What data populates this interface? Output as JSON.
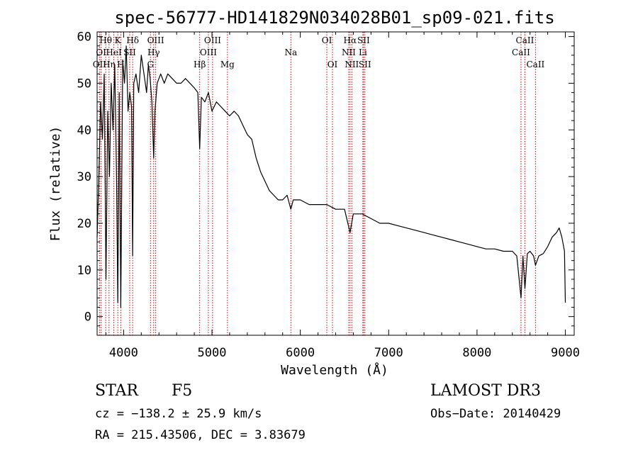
{
  "chart_data": {
    "type": "line",
    "title": "spec-56777-HD141829N034028B01_sp09-021.fits",
    "xlabel": "Wavelength (Å)",
    "ylabel": "Flux (relative)",
    "xlim": [
      3700,
      9100
    ],
    "ylim": [
      -4,
      61
    ],
    "xticks": [
      4000,
      5000,
      6000,
      7000,
      8000,
      9000
    ],
    "yticks": [
      0,
      10,
      20,
      30,
      40,
      50,
      60
    ],
    "series": [
      {
        "name": "spectrum",
        "x": [
          3700,
          3720,
          3740,
          3760,
          3780,
          3800,
          3820,
          3840,
          3860,
          3880,
          3900,
          3920,
          3934,
          3950,
          3968,
          3990,
          4010,
          4030,
          4050,
          4070,
          4090,
          4102,
          4115,
          4140,
          4170,
          4200,
          4230,
          4260,
          4280,
          4300,
          4320,
          4340,
          4355,
          4380,
          4420,
          4460,
          4500,
          4550,
          4600,
          4650,
          4700,
          4750,
          4800,
          4840,
          4861,
          4880,
          4920,
          4960,
          5000,
          5050,
          5100,
          5150,
          5200,
          5250,
          5300,
          5350,
          5400,
          5450,
          5500,
          5550,
          5600,
          5650,
          5700,
          5750,
          5800,
          5850,
          5893,
          5920,
          6000,
          6100,
          6200,
          6300,
          6400,
          6500,
          6563,
          6600,
          6700,
          6800,
          6900,
          7000,
          7100,
          7200,
          7300,
          7400,
          7500,
          7600,
          7700,
          7800,
          7900,
          8000,
          8100,
          8200,
          8300,
          8400,
          8450,
          8498,
          8520,
          8542,
          8570,
          8600,
          8640,
          8662,
          8700,
          8750,
          8800,
          8850,
          8900,
          8930,
          8960,
          8990,
          9000
        ],
        "values": [
          17,
          30,
          46,
          38,
          52,
          8,
          44,
          30,
          50,
          40,
          54,
          30,
          3,
          48,
          2,
          55,
          50,
          58,
          44,
          48,
          45,
          13,
          50,
          52,
          48,
          56,
          52,
          48,
          54,
          51,
          46,
          34,
          44,
          50,
          52,
          50,
          52,
          51,
          50,
          50,
          51,
          50,
          49,
          48,
          36,
          47,
          46,
          48,
          44,
          46,
          45,
          44,
          43,
          44,
          43,
          41,
          39,
          38,
          34,
          31,
          29,
          27,
          26,
          25,
          25,
          26,
          23,
          25,
          25,
          24,
          24,
          24,
          23,
          23,
          18,
          22,
          22,
          21,
          20,
          20,
          19.5,
          19,
          18.5,
          18,
          17.5,
          17,
          16.5,
          16,
          15.5,
          15,
          14.5,
          14.5,
          14,
          14,
          13,
          4,
          13,
          6,
          13.5,
          14,
          13,
          11,
          13,
          13.5,
          15,
          17,
          18,
          19,
          17,
          14,
          3
        ]
      }
    ],
    "lines": [
      {
        "name": "OII",
        "wave": 3727,
        "row": 3
      },
      {
        "name": "Hθ",
        "wave": 3797,
        "row": 1
      },
      {
        "name": "OI",
        "wave": 3745,
        "row": 2
      },
      {
        "name": "Hη",
        "wave": 3835,
        "row": 3
      },
      {
        "name": "HeI",
        "wave": 3889,
        "row": 2
      },
      {
        "name": "K",
        "wave": 3934,
        "row": 1
      },
      {
        "name": "H",
        "wave": 3968,
        "row": 3
      },
      {
        "name": "SII",
        "wave": 4069,
        "row": 2
      },
      {
        "name": "Hδ",
        "wave": 4102,
        "row": 1
      },
      {
        "name": "OIII",
        "wave": 4363,
        "row": 1
      },
      {
        "name": "Hγ",
        "wave": 4340,
        "row": 2
      },
      {
        "name": "G",
        "wave": 4304,
        "row": 3
      },
      {
        "name": "Hβ",
        "wave": 4861,
        "row": 3
      },
      {
        "name": "OIII",
        "wave": 5007,
        "row": 1
      },
      {
        "name": "OIII",
        "wave": 4959,
        "row": 2
      },
      {
        "name": "Mg",
        "wave": 5175,
        "row": 3
      },
      {
        "name": "Na",
        "wave": 5893,
        "row": 2
      },
      {
        "name": "OI",
        "wave": 6300,
        "row": 1
      },
      {
        "name": "OI",
        "wave": 6364,
        "row": 3
      },
      {
        "name": "Hα",
        "wave": 6563,
        "row": 1
      },
      {
        "name": "NII",
        "wave": 6548,
        "row": 2
      },
      {
        "name": "NII",
        "wave": 6583,
        "row": 3
      },
      {
        "name": "SII",
        "wave": 6716,
        "row": 1
      },
      {
        "name": "Li",
        "wave": 6708,
        "row": 2
      },
      {
        "name": "SII",
        "wave": 6731,
        "row": 3
      },
      {
        "name": "CaII",
        "wave": 8542,
        "row": 1
      },
      {
        "name": "CaII",
        "wave": 8498,
        "row": 2
      },
      {
        "name": "CaII",
        "wave": 8662,
        "row": 3
      }
    ]
  },
  "info": {
    "object_class": "STAR",
    "subclass": "F5",
    "survey": "LAMOST DR3",
    "redshift": "cz = −138.2 ± 25.9 km/s",
    "obs_date": "Obs−Date: 20140429",
    "coords": "RA = 215.43506, DEC =   3.83679"
  }
}
